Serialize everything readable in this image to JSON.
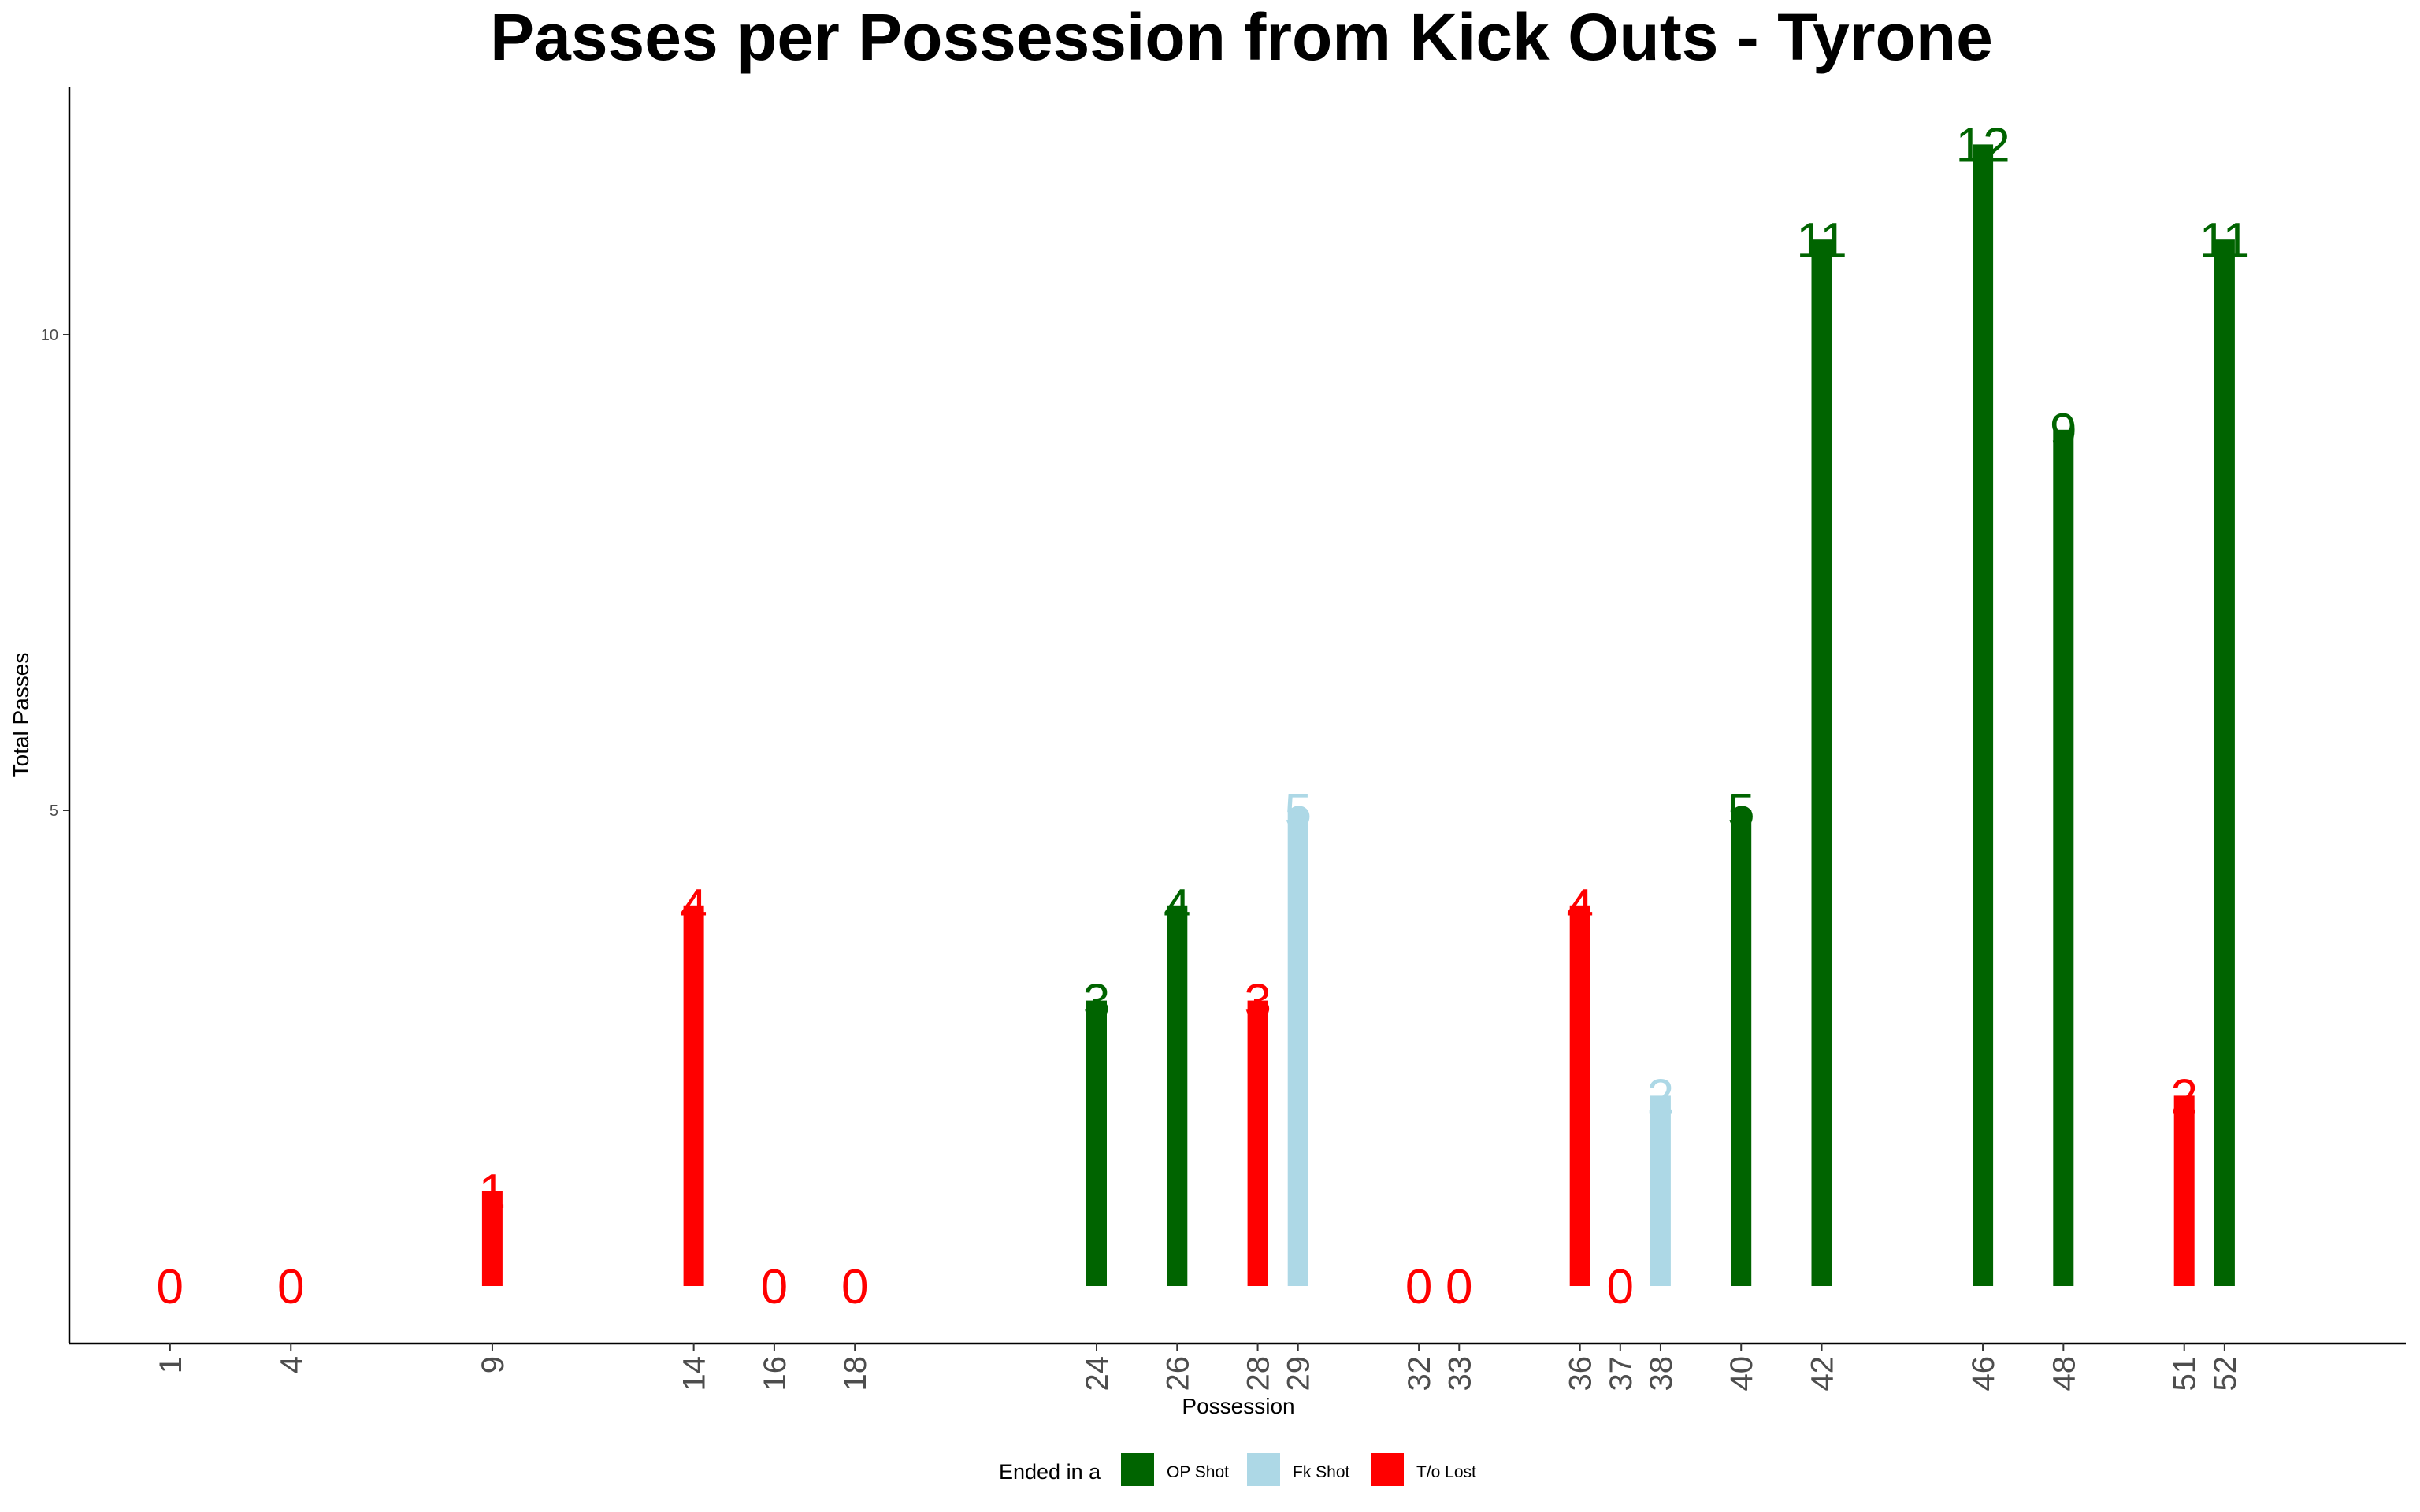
{
  "chart_data": {
    "type": "bar",
    "title": "Passes per Possession from Kick Outs - Tyrone",
    "xlabel": "Possession",
    "ylabel": "Total Passes",
    "ylim": [
      0,
      12.6
    ],
    "xlim": [
      -1.5,
      56.5
    ],
    "yticks": [
      5,
      10
    ],
    "grid": false,
    "legend": {
      "title": "Ended in a",
      "position": "bottom",
      "items": [
        {
          "label": "OP Shot",
          "color": "#006400"
        },
        {
          "label": "Fk Shot",
          "color": "#ADD8E6"
        },
        {
          "label": "T/o Lost",
          "color": "#FF0000"
        }
      ]
    },
    "points": [
      {
        "possession": 1,
        "passes": 0,
        "outcome": "T/o Lost"
      },
      {
        "possession": 4,
        "passes": 0,
        "outcome": "T/o Lost"
      },
      {
        "possession": 9,
        "passes": 1,
        "outcome": "T/o Lost"
      },
      {
        "possession": 14,
        "passes": 4,
        "outcome": "T/o Lost"
      },
      {
        "possession": 16,
        "passes": 0,
        "outcome": "T/o Lost"
      },
      {
        "possession": 18,
        "passes": 0,
        "outcome": "T/o Lost"
      },
      {
        "possession": 24,
        "passes": 3,
        "outcome": "OP Shot"
      },
      {
        "possession": 26,
        "passes": 4,
        "outcome": "OP Shot"
      },
      {
        "possession": 28,
        "passes": 3,
        "outcome": "T/o Lost"
      },
      {
        "possession": 29,
        "passes": 5,
        "outcome": "Fk Shot"
      },
      {
        "possession": 32,
        "passes": 0,
        "outcome": "T/o Lost"
      },
      {
        "possession": 33,
        "passes": 0,
        "outcome": "T/o Lost"
      },
      {
        "possession": 36,
        "passes": 4,
        "outcome": "T/o Lost"
      },
      {
        "possession": 37,
        "passes": 0,
        "outcome": "T/o Lost"
      },
      {
        "possession": 38,
        "passes": 2,
        "outcome": "Fk Shot"
      },
      {
        "possession": 40,
        "passes": 5,
        "outcome": "OP Shot"
      },
      {
        "possession": 42,
        "passes": 11,
        "outcome": "OP Shot"
      },
      {
        "possession": 46,
        "passes": 12,
        "outcome": "OP Shot"
      },
      {
        "possession": 48,
        "passes": 9,
        "outcome": "OP Shot"
      },
      {
        "possession": 51,
        "passes": 2,
        "outcome": "T/o Lost"
      },
      {
        "possession": 52,
        "passes": 11,
        "outcome": "OP Shot"
      }
    ]
  }
}
